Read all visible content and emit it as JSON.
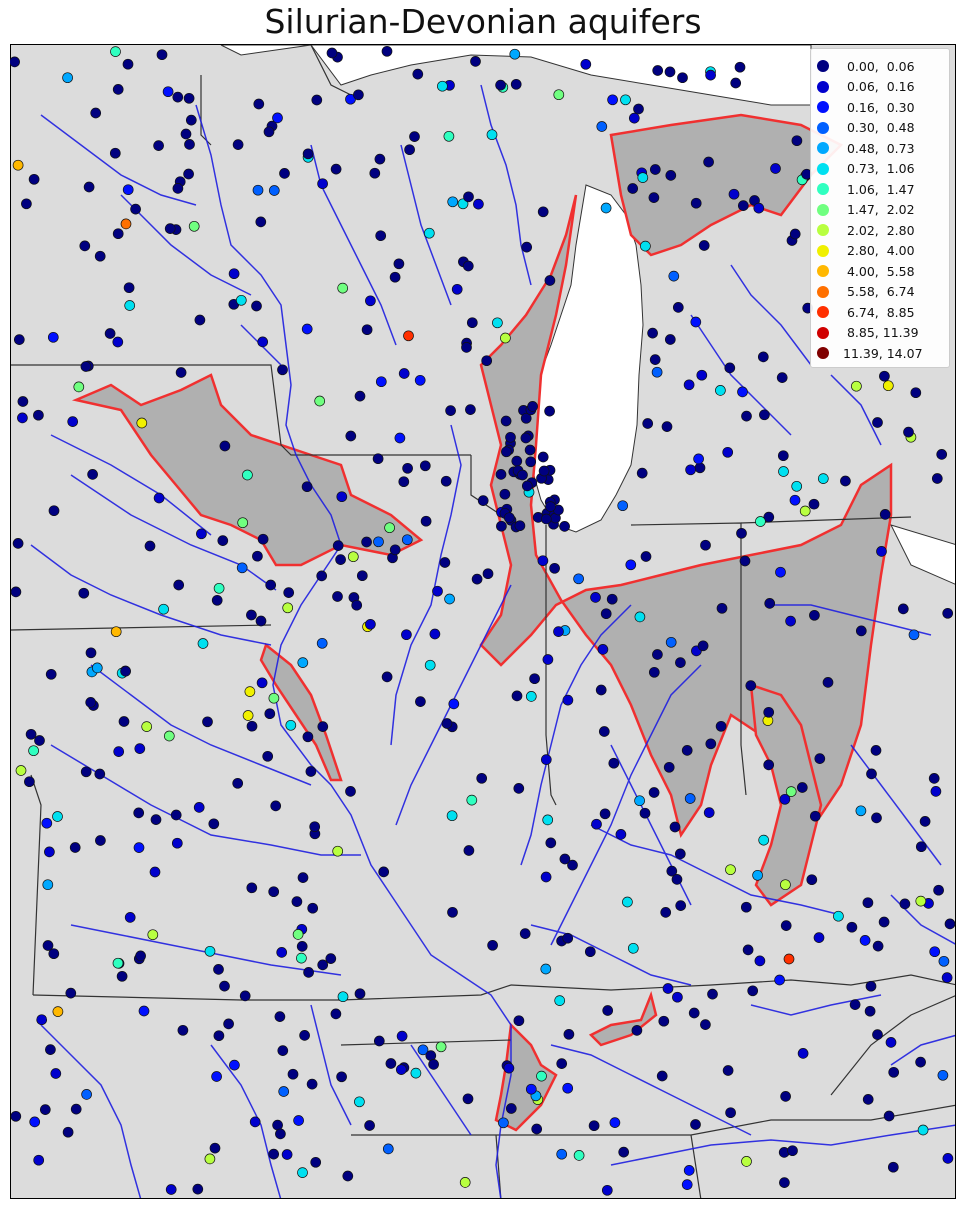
{
  "title": "Silurian-Devonian aquifers",
  "colors": {
    "land": "#dcdcdc",
    "water": "#ffffff",
    "river": "#1f1fe0",
    "aquifer_fill": "#b0b0b0",
    "aquifer_outline": "#f03030",
    "border": "#333333"
  },
  "legend": {
    "placement": "top-right",
    "items": [
      {
        "label": " 0.00,  0.06",
        "color": "#000080"
      },
      {
        "label": " 0.06,  0.16",
        "color": "#0000cd"
      },
      {
        "label": " 0.16,  0.30",
        "color": "#0010ff"
      },
      {
        "label": " 0.30,  0.48",
        "color": "#0060ff"
      },
      {
        "label": " 0.48,  0.73",
        "color": "#00a8ff"
      },
      {
        "label": " 0.73,  1.06",
        "color": "#00e0f0"
      },
      {
        "label": " 1.06,  1.47",
        "color": "#30ffc0"
      },
      {
        "label": " 1.47,  2.02",
        "color": "#70ff80"
      },
      {
        "label": " 2.02,  2.80",
        "color": "#b8ff40"
      },
      {
        "label": " 2.80,  4.00",
        "color": "#f0f000"
      },
      {
        "label": " 4.00,  5.58",
        "color": "#ffb800"
      },
      {
        "label": " 5.58,  6.74",
        "color": "#ff7000"
      },
      {
        "label": " 6.74,  8.85",
        "color": "#ff3000"
      },
      {
        "label": " 8.85, 11.39",
        "color": "#d00000"
      },
      {
        "label": "11.39, 14.07",
        "color": "#800000"
      }
    ]
  },
  "map_data": {
    "value_classes": 15,
    "dominant_class": 0
  }
}
